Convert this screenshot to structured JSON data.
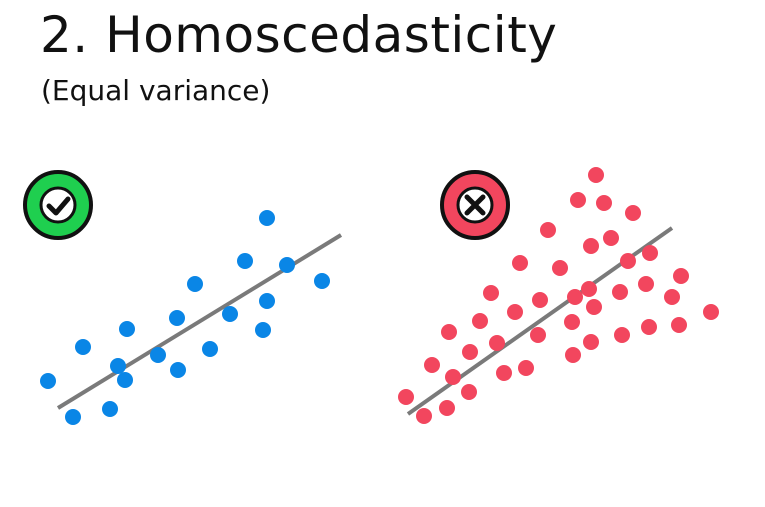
{
  "heading": {
    "title": "2. Homoscedasticity",
    "subtitle": "(Equal variance)"
  },
  "colors": {
    "good_points": "#0a86e6",
    "bad_points": "#f2465e",
    "fit_line": "#7a7a7a",
    "check_badge": "#1fcf4f",
    "cross_badge": "#f2465e"
  },
  "panels": [
    {
      "id": "equal-variance",
      "badge_icon": "check-icon",
      "points": []
    },
    {
      "id": "unequal-variance",
      "badge_icon": "cross-icon",
      "points": []
    }
  ]
}
